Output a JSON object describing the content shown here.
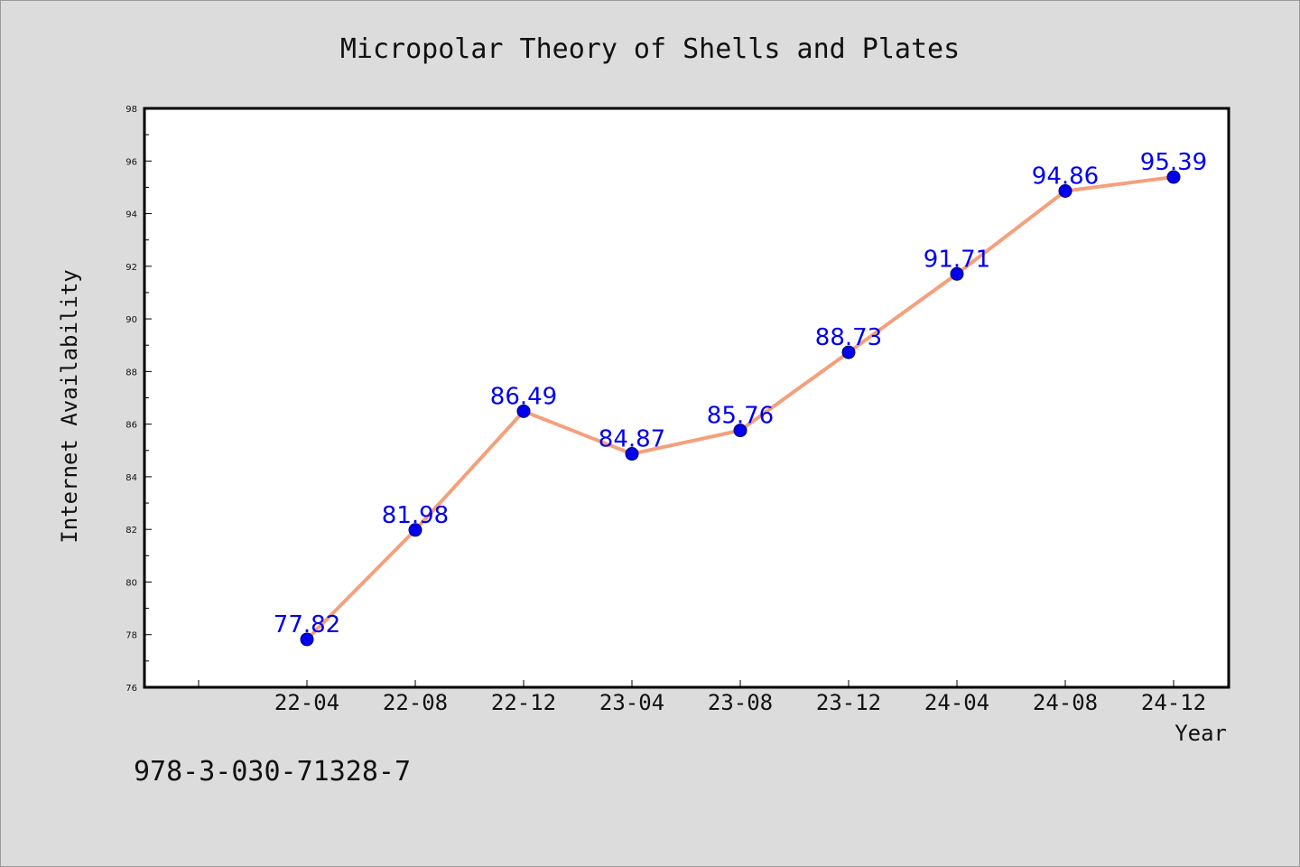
{
  "chart_data": {
    "type": "line",
    "title": "Micropolar Theory of Shells and Plates",
    "xlabel": "Year",
    "ylabel": "Internet Availability",
    "categories": [
      "22-04",
      "22-08",
      "22-12",
      "23-04",
      "23-08",
      "23-12",
      "24-04",
      "24-08",
      "24-12"
    ],
    "values": [
      77.82,
      81.98,
      86.49,
      84.87,
      85.76,
      88.73,
      91.71,
      94.86,
      95.39
    ],
    "data_labels": [
      "77.82",
      "81.98",
      "86.49",
      "84.87",
      "85.76",
      "88.73",
      "91.71",
      "94.86",
      "95.39"
    ],
    "ylim": [
      76,
      98
    ],
    "yticks": [
      "76",
      "78",
      "80",
      "82",
      "84",
      "86",
      "88",
      "90",
      "92",
      "94",
      "96",
      "98"
    ],
    "grid": false,
    "legend": "none",
    "line_color": "#f4a07c",
    "marker_color": "#0000ee",
    "label_color": "#0000ee"
  },
  "annotation": "978-3-030-71328-7"
}
